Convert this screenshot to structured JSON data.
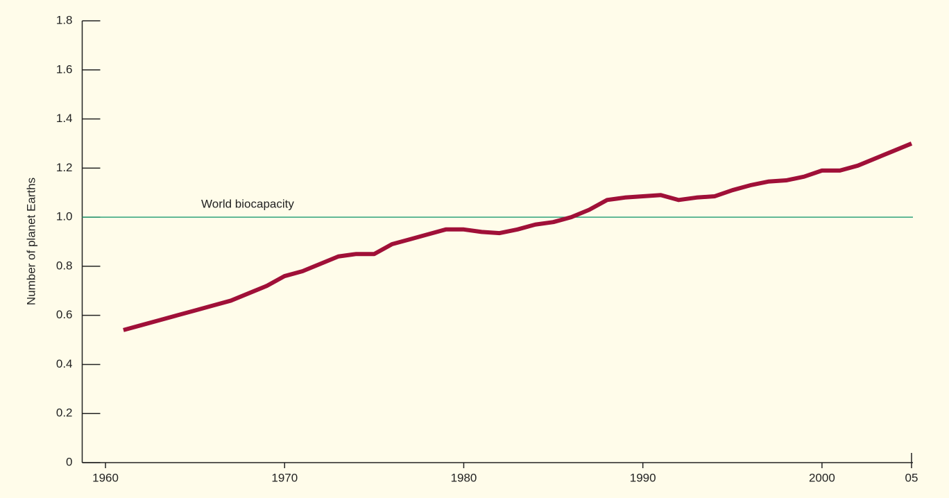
{
  "chart_data": {
    "type": "line",
    "y_label": "Number of planet Earths",
    "x": [
      1961,
      1962,
      1963,
      1964,
      1965,
      1966,
      1967,
      1968,
      1969,
      1970,
      1971,
      1972,
      1973,
      1974,
      1975,
      1976,
      1977,
      1978,
      1979,
      1980,
      1981,
      1982,
      1983,
      1984,
      1985,
      1986,
      1987,
      1988,
      1989,
      1990,
      1991,
      1992,
      1993,
      1994,
      1995,
      1996,
      1997,
      1998,
      1999,
      2000,
      2001,
      2002,
      2003,
      2004,
      2005
    ],
    "values": [
      0.54,
      0.56,
      0.58,
      0.6,
      0.62,
      0.64,
      0.66,
      0.69,
      0.72,
      0.76,
      0.78,
      0.81,
      0.84,
      0.85,
      0.85,
      0.89,
      0.91,
      0.93,
      0.95,
      0.95,
      0.94,
      0.935,
      0.95,
      0.97,
      0.98,
      1.0,
      1.03,
      1.07,
      1.08,
      1.085,
      1.09,
      1.07,
      1.08,
      1.085,
      1.11,
      1.13,
      1.145,
      1.15,
      1.165,
      1.19,
      1.19,
      1.21,
      1.24,
      1.27,
      1.3
    ],
    "color": "#a01038",
    "reference_line": {
      "value": 1,
      "label": "World biocapacity",
      "color": "#2ea37a"
    },
    "xlim": [
      1958.7,
      2005
    ],
    "xticks": [
      1960,
      1970,
      1980,
      1990,
      {
        "value": 2000,
        "label": "2000"
      },
      {
        "value": 2005,
        "label": "05"
      }
    ],
    "ylim": [
      0,
      1.8
    ],
    "yticks": [
      0,
      0.2,
      0.4,
      0.6,
      0.8,
      {
        "value": 1,
        "label": "1.0"
      },
      1.2,
      1.4,
      1.6,
      1.8
    ]
  }
}
